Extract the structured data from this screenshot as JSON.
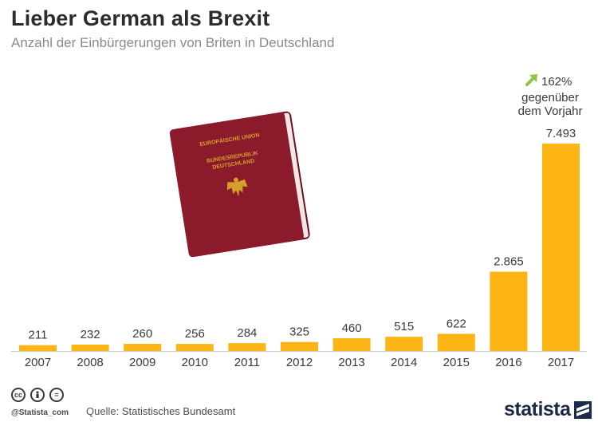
{
  "header": {
    "title": "Lieber German als Brexit",
    "subtitle": "Anzahl der Einbürgerungen von Briten in Deutschland"
  },
  "annotation": {
    "percent": "162%",
    "line1": "gegenüber",
    "line2": "dem Vorjahr",
    "arrow_color": "#8cc63f"
  },
  "passport": {
    "line1": "EUROPÄISCHE UNION",
    "line2": "BUNDESREPUBLIK",
    "line3": "DEUTSCHLAND",
    "cover_color": "#8b1a2b",
    "emblem_color": "#d4a02a"
  },
  "footer": {
    "cc_icons": [
      "cc-icon",
      "person-icon",
      "equals-icon"
    ],
    "handle": "@Statista_com",
    "source_label": "Quelle:",
    "source": "Statistisches Bundesamt",
    "brand": "statista"
  },
  "colors": {
    "bar": "#fdb515",
    "axis": "#cccccc",
    "label": "#3a3a3a"
  },
  "chart_data": {
    "type": "bar",
    "title": "Lieber German als Brexit",
    "subtitle": "Anzahl der Einbürgerungen von Briten in Deutschland",
    "categories": [
      "2007",
      "2008",
      "2009",
      "2010",
      "2011",
      "2012",
      "2013",
      "2014",
      "2015",
      "2016",
      "2017"
    ],
    "values": [
      211,
      232,
      260,
      256,
      284,
      325,
      460,
      515,
      622,
      2865,
      7493
    ],
    "value_labels": [
      "211",
      "232",
      "260",
      "256",
      "284",
      "325",
      "460",
      "515",
      "622",
      "2.865",
      "7.493"
    ],
    "xlabel": "",
    "ylabel": "",
    "ylim": [
      0,
      7493
    ],
    "grid": false,
    "legend": "none"
  }
}
